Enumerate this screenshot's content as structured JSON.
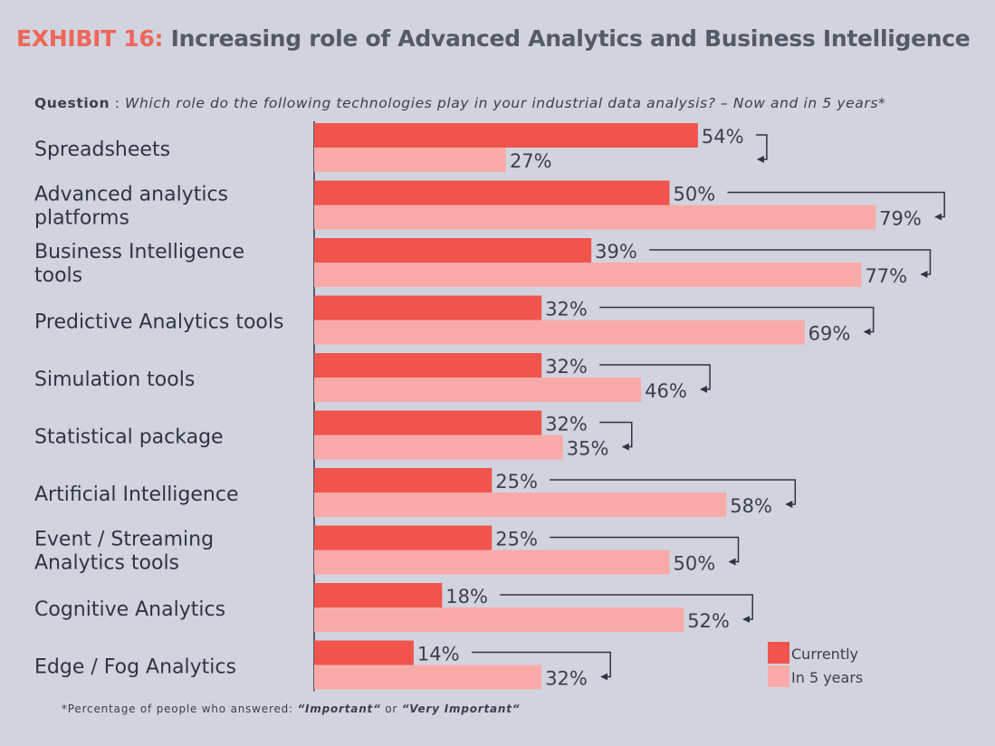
{
  "title": {
    "exhibit": "EXHIBIT 16:",
    "text": "Increasing role of Advanced Analytics and Business Intelligence"
  },
  "question": {
    "label": "Question",
    "sep": ":",
    "text": "Which role do the following technologies play in your industrial data analysis? – Now and in 5 years*"
  },
  "footnote": {
    "text": "*Percentage of people who answered:",
    "opt1": "“Important“",
    "or": "or",
    "opt2": "“Very Important“"
  },
  "chart_data": {
    "type": "bar",
    "orientation": "horizontal",
    "categories": [
      [
        "Spreadsheets"
      ],
      [
        "Advanced analytics",
        "platforms"
      ],
      [
        "Business Intelligence",
        "tools"
      ],
      [
        "Predictive Analytics tools"
      ],
      [
        "Simulation tools"
      ],
      [
        "Statistical package"
      ],
      [
        "Artificial Intelligence"
      ],
      [
        "Event / Streaming",
        "Analytics tools"
      ],
      [
        "Cognitive Analytics"
      ],
      [
        "Edge / Fog Analytics"
      ]
    ],
    "series": [
      {
        "name": "Currently",
        "color": "#f0544c",
        "values": [
          54,
          50,
          39,
          32,
          32,
          32,
          25,
          25,
          18,
          14
        ]
      },
      {
        "name": "In 5 years",
        "color": "#f8aaa9",
        "values": [
          27,
          79,
          77,
          69,
          46,
          35,
          58,
          50,
          52,
          32
        ]
      }
    ],
    "value_suffix": "%",
    "xlim": [
      0,
      100
    ],
    "legend": "bottom-right",
    "grid": false
  }
}
